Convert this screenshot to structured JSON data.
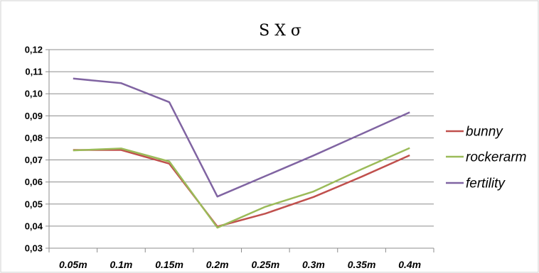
{
  "chart_data": {
    "type": "line",
    "title": "S X σ",
    "xlabel": "",
    "ylabel": "",
    "categories": [
      "0.05m",
      "0.1m",
      "0.15m",
      "0.2m",
      "0.25m",
      "0.3m",
      "0.35m",
      "0.4m"
    ],
    "ylim": [
      0.03,
      0.12
    ],
    "yticks": [
      "0,03",
      "0,04",
      "0,05",
      "0,06",
      "0,07",
      "0,08",
      "0,09",
      "0,10",
      "0,11",
      "0,12"
    ],
    "grid": true,
    "legend_position": "right",
    "series": [
      {
        "name": "bunny",
        "color": "#c0504d",
        "values": [
          0.0745,
          0.0745,
          0.0683,
          0.0398,
          0.0457,
          0.0532,
          0.0624,
          0.0721
        ]
      },
      {
        "name": "rockerarm",
        "color": "#9bbb59",
        "values": [
          0.0743,
          0.0752,
          0.0693,
          0.0393,
          0.0488,
          0.0557,
          0.0658,
          0.0754
        ]
      },
      {
        "name": "fertility",
        "color": "#8064a2",
        "values": [
          0.1069,
          0.1048,
          0.0962,
          0.0534,
          0.0627,
          0.072,
          0.0818,
          0.0916
        ]
      }
    ]
  }
}
